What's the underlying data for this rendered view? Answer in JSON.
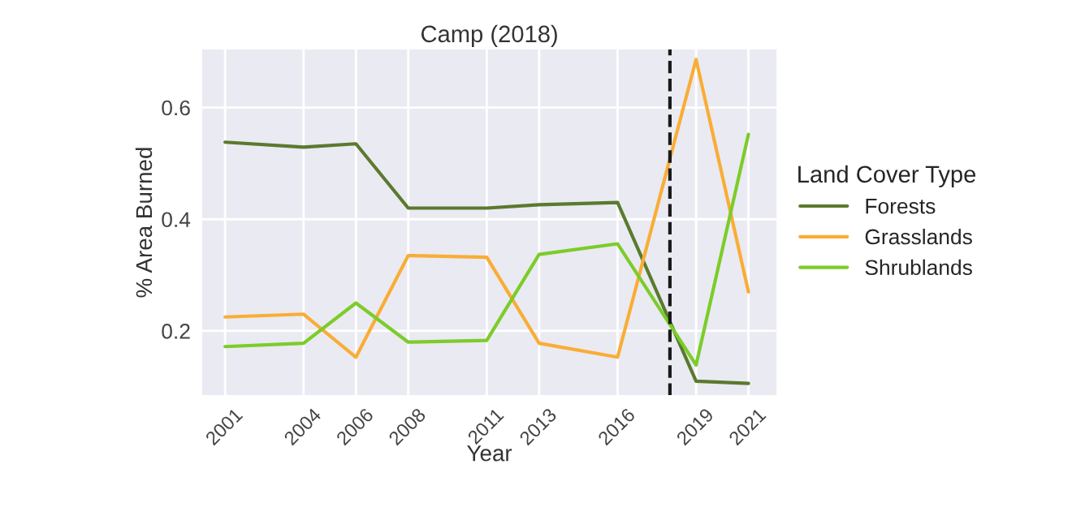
{
  "chart_data": {
    "type": "line",
    "title": "Camp (2018)",
    "xlabel": "Year",
    "ylabel": "% Area Burned",
    "legend_title": "Land Cover Type",
    "x": [
      2001,
      2004,
      2006,
      2008,
      2011,
      2013,
      2016,
      2019,
      2021
    ],
    "series": [
      {
        "name": "Forests",
        "color": "#5a7a2e",
        "values": [
          0.538,
          0.529,
          0.535,
          0.42,
          0.42,
          0.426,
          0.43,
          0.11,
          0.106
        ]
      },
      {
        "name": "Grasslands",
        "color": "#f9ad35",
        "values": [
          0.225,
          0.23,
          0.153,
          0.335,
          0.332,
          0.178,
          0.153,
          0.686,
          0.27
        ]
      },
      {
        "name": "Shrublands",
        "color": "#7ccc2a",
        "values": [
          0.172,
          0.178,
          0.25,
          0.18,
          0.183,
          0.337,
          0.356,
          0.139,
          0.552
        ]
      }
    ],
    "xlim": [
      2000.1,
      2022.1
    ],
    "xticks": [
      2001,
      2004,
      2006,
      2008,
      2011,
      2013,
      2016,
      2019,
      2021
    ],
    "ylim": [
      0.084,
      0.705
    ],
    "yticks": [
      0.2,
      0.4,
      0.6
    ],
    "ref_lines": [
      {
        "axis": "x",
        "value": 2018,
        "label": null,
        "color": "#1a1a1a",
        "line_style": "dashed"
      }
    ],
    "grid": true,
    "legend": "right",
    "marker": "none",
    "line_style": "solid"
  }
}
